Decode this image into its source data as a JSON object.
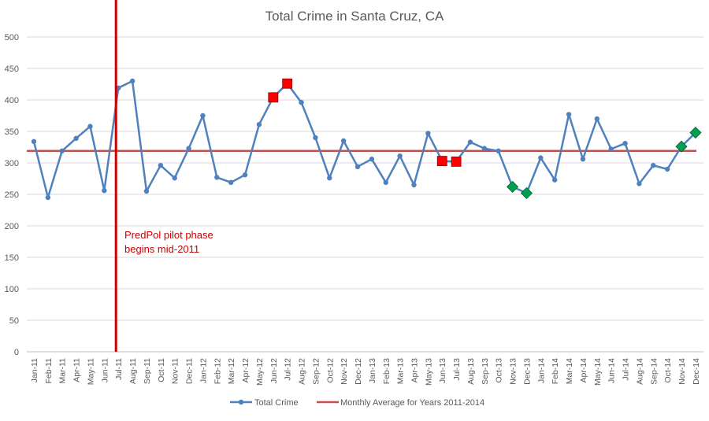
{
  "chart_data": {
    "type": "line",
    "title": "Total Crime in Santa Cruz, CA",
    "xlabel": "",
    "ylabel": "",
    "ylim": [
      0,
      500
    ],
    "yticks": [
      0,
      50,
      100,
      150,
      200,
      250,
      300,
      350,
      400,
      450,
      500
    ],
    "grid": true,
    "legend_position": "bottom",
    "categories": [
      "Jan-11",
      "Feb-11",
      "Mar-11",
      "Apr-11",
      "May-11",
      "Jun-11",
      "Jul-11",
      "Aug-11",
      "Sep-11",
      "Oct-11",
      "Nov-11",
      "Dec-11",
      "Jan-12",
      "Feb-12",
      "Mar-12",
      "Apr-12",
      "May-12",
      "Jun-12",
      "Jul-12",
      "Aug-12",
      "Sep-12",
      "Oct-12",
      "Nov-12",
      "Dec-12",
      "Jan-13",
      "Feb-13",
      "Mar-13",
      "Apr-13",
      "May-13",
      "Jun-13",
      "Jul-13",
      "Aug-13",
      "Sep-13",
      "Oct-13",
      "Nov-13",
      "Dec-13",
      "Jan-14",
      "Feb-14",
      "Mar-14",
      "Apr-14",
      "May-14",
      "Jun-14",
      "Jul-14",
      "Aug-14",
      "Sep-14",
      "Oct-14",
      "Nov-14",
      "Dec-14"
    ],
    "series": [
      {
        "name": "Total Crime",
        "color": "#4f81bd",
        "values": [
          334,
          245,
          319,
          339,
          358,
          256,
          419,
          430,
          255,
          296,
          276,
          323,
          375,
          277,
          269,
          281,
          361,
          404,
          426,
          396,
          340,
          276,
          335,
          294,
          306,
          269,
          311,
          265,
          347,
          303,
          302,
          333,
          323,
          319,
          262,
          252,
          308,
          273,
          377,
          306,
          370,
          322,
          331,
          267,
          296,
          290,
          326,
          348
        ]
      },
      {
        "name": "Monthly Average for Years 2011-2014",
        "color": "#c0504d",
        "constant": 319
      }
    ],
    "highlights": {
      "high_points": {
        "shape": "square",
        "color": "#ff0000",
        "categories": [
          "Jun-12",
          "Jul-12",
          "Jun-13",
          "Jul-13"
        ]
      },
      "low_points": {
        "shape": "diamond",
        "color": "#00a050",
        "categories": [
          "Nov-13",
          "Dec-13",
          "Nov-14",
          "Dec-14"
        ]
      }
    },
    "annotations": [
      {
        "line_after": "Jun-11",
        "color": "#cc0000",
        "text_line1": "PredPol pilot phase",
        "text_line2": "begins mid-2011"
      }
    ]
  }
}
